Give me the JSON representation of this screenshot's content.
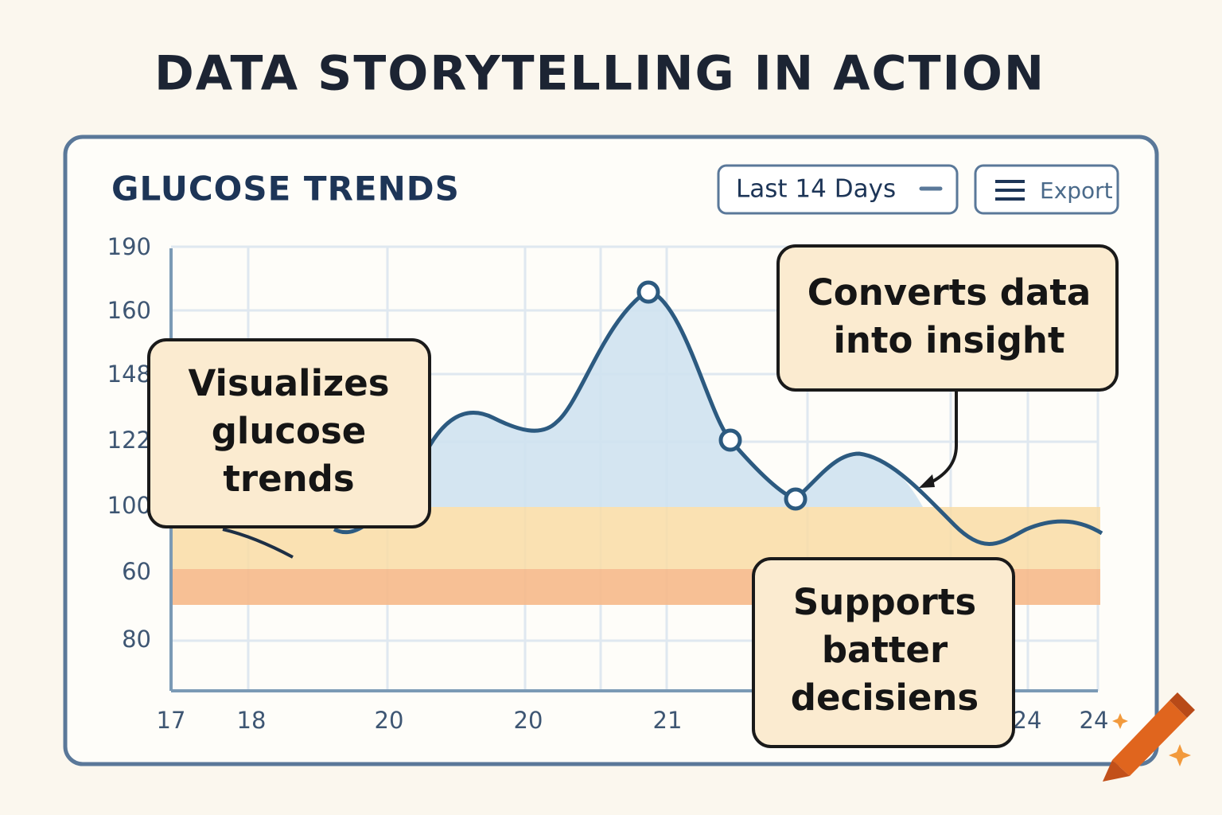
{
  "title": "DATA STORYTELLING IN ACTION",
  "panel": {
    "title": "GLUCOSE TRENDS",
    "dropdown": "Last 14 Days",
    "export": "Export",
    "y_labels": [
      190,
      160,
      148,
      122,
      100,
      60,
      80
    ],
    "x_labels": [
      17,
      18,
      20,
      20,
      21,
      24,
      24
    ],
    "callouts": [
      {
        "lines": [
          "Visualizes",
          "glucose",
          "trends"
        ]
      },
      {
        "lines": [
          "Converts data",
          "into insight"
        ]
      },
      {
        "lines": [
          "Supports",
          "batter",
          "decisiens"
        ]
      }
    ]
  }
}
